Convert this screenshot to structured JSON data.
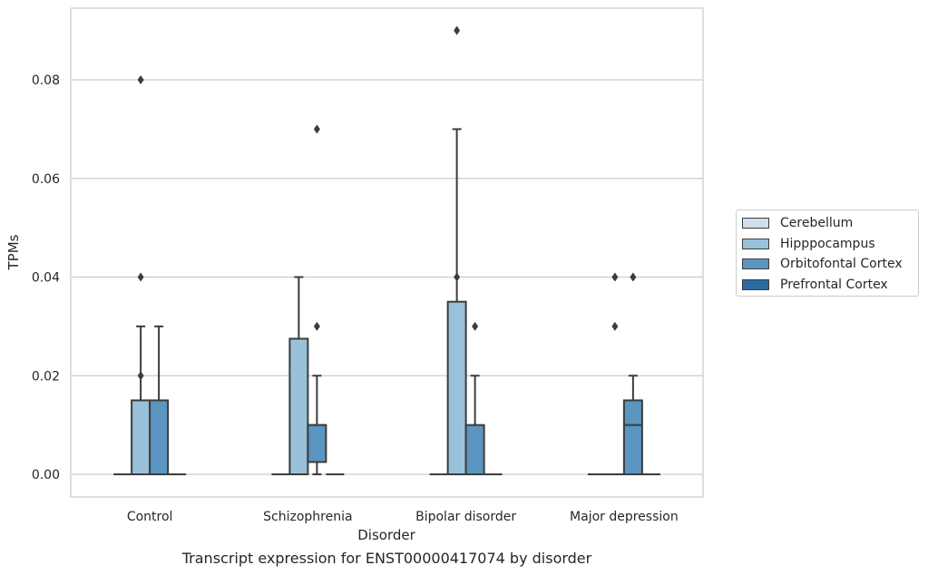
{
  "chart_data": {
    "type": "box",
    "caption": "Transcript expression for ENST00000417074 by disorder",
    "xlabel": "Disorder",
    "ylabel": "TPMs",
    "ylim": [
      -0.0045,
      0.0945
    ],
    "yticks": [
      0.0,
      0.02,
      0.04,
      0.06,
      0.08
    ],
    "ytick_labels": [
      "0.00",
      "0.02",
      "0.04",
      "0.06",
      "0.08"
    ],
    "grid": "horizontal",
    "legend_position": "right",
    "categories": [
      "Control",
      "Schizophrenia",
      "Bipolar disorder",
      "Major depression"
    ],
    "series": [
      {
        "name": "Cerebellum",
        "color": "#d1dfec",
        "boxes": [
          {
            "min": 0,
            "q1": 0,
            "median": 0,
            "q3": 0,
            "max": 0,
            "outliers": []
          },
          {
            "min": 0,
            "q1": 0,
            "median": 0,
            "q3": 0,
            "max": 0,
            "outliers": []
          },
          {
            "min": 0,
            "q1": 0,
            "median": 0,
            "q3": 0,
            "max": 0,
            "outliers": []
          },
          {
            "min": 0,
            "q1": 0,
            "median": 0,
            "q3": 0,
            "max": 0,
            "outliers": []
          }
        ]
      },
      {
        "name": "Hipppocampus",
        "color": "#99c1d9",
        "boxes": [
          {
            "min": 0,
            "q1": 0,
            "median": 0,
            "q3": 0.015,
            "max": 0.03,
            "outliers": [
              0.02,
              0.04,
              0.08
            ]
          },
          {
            "min": 0,
            "q1": 0,
            "median": 0,
            "q3": 0.0275,
            "max": 0.04,
            "outliers": []
          },
          {
            "min": 0,
            "q1": 0,
            "median": 0,
            "q3": 0.035,
            "max": 0.07,
            "outliers": [
              0.04,
              0.09
            ]
          },
          {
            "min": 0,
            "q1": 0,
            "median": 0,
            "q3": 0,
            "max": 0,
            "outliers": [
              0.03,
              0.04
            ]
          }
        ]
      },
      {
        "name": "Orbitofontal Cortex",
        "color": "#5b95c1",
        "boxes": [
          {
            "min": 0,
            "q1": 0,
            "median": 0,
            "q3": 0.015,
            "max": 0.03,
            "outliers": []
          },
          {
            "min": 0,
            "q1": 0.0025,
            "median": 0.01,
            "q3": 0.01,
            "max": 0.02,
            "outliers": [
              0.03,
              0.07
            ]
          },
          {
            "min": 0,
            "q1": 0,
            "median": 0,
            "q3": 0.01,
            "max": 0.02,
            "outliers": [
              0.03
            ]
          },
          {
            "min": 0,
            "q1": 0,
            "median": 0.01,
            "q3": 0.015,
            "max": 0.02,
            "outliers": [
              0.04
            ]
          }
        ]
      },
      {
        "name": "Prefrontal Cortex",
        "color": "#2c6aa4",
        "boxes": [
          {
            "min": 0,
            "q1": 0,
            "median": 0,
            "q3": 0,
            "max": 0,
            "outliers": []
          },
          {
            "min": 0,
            "q1": 0,
            "median": 0,
            "q3": 0,
            "max": 0,
            "outliers": []
          },
          {
            "min": 0,
            "q1": 0,
            "median": 0,
            "q3": 0,
            "max": 0,
            "outliers": []
          },
          {
            "min": 0,
            "q1": 0,
            "median": 0,
            "q3": 0,
            "max": 0,
            "outliers": []
          }
        ]
      }
    ]
  }
}
